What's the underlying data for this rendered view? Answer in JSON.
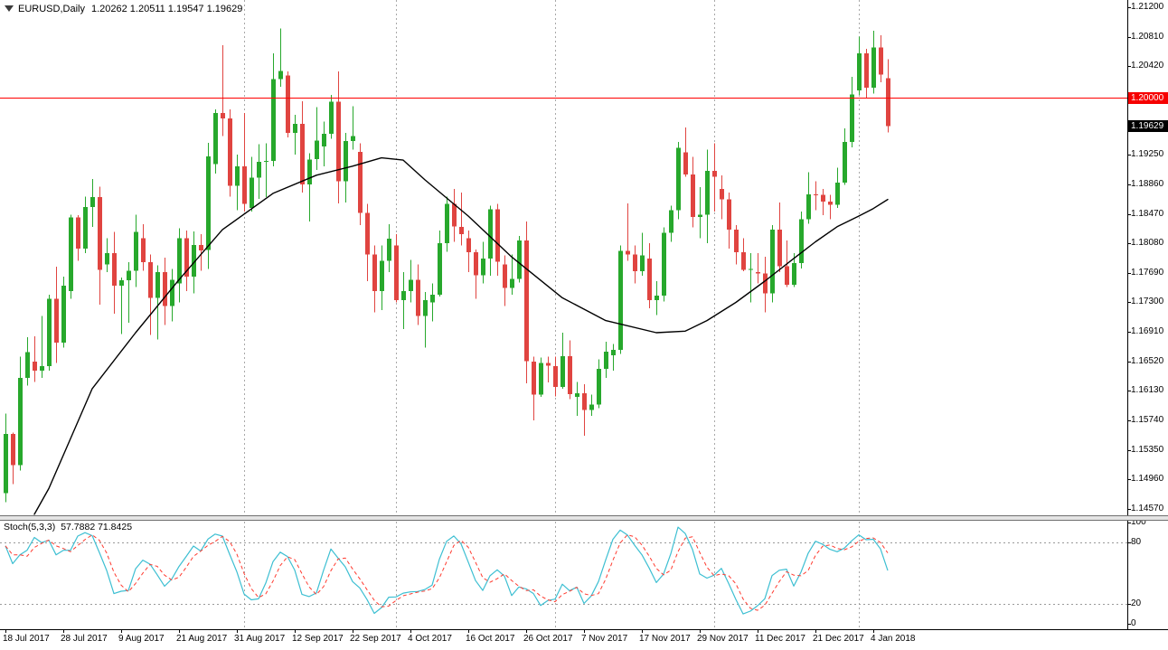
{
  "header": {
    "symbol": "EURUSD,Daily",
    "quote": "1.20262 1.20511 1.19547 1.19629"
  },
  "indicator": {
    "label": "Stoch(5,3,3)",
    "values": "57.7882 71.8425"
  },
  "price_axis": {
    "labels": [
      "1.21200",
      "1.20810",
      "1.20420",
      "1.19250",
      "1.18860",
      "1.18470",
      "1.18080",
      "1.17690",
      "1.17300",
      "1.16910",
      "1.16520",
      "1.16130",
      "1.15740",
      "1.15350",
      "1.14960",
      "1.14570"
    ],
    "red_badge": "1.20000",
    "price_badge": "1.19629"
  },
  "stoch_axis": {
    "labels": [
      "100",
      "80",
      "20",
      "0"
    ]
  },
  "time_axis": {
    "labels": [
      {
        "text": "18 Jul 2017",
        "bar": 0
      },
      {
        "text": "28 Jul 2017",
        "bar": 8
      },
      {
        "text": "9 Aug 2017",
        "bar": 16
      },
      {
        "text": "21 Aug 2017",
        "bar": 24
      },
      {
        "text": "31 Aug 2017",
        "bar": 32
      },
      {
        "text": "12 Sep 2017",
        "bar": 40
      },
      {
        "text": "22 Sep 2017",
        "bar": 48
      },
      {
        "text": "4 Oct 2017",
        "bar": 56
      },
      {
        "text": "16 Oct 2017",
        "bar": 64
      },
      {
        "text": "26 Oct 2017",
        "bar": 72
      },
      {
        "text": "7 Nov 2017",
        "bar": 80
      },
      {
        "text": "17 Nov 2017",
        "bar": 88
      },
      {
        "text": "29 Nov 2017",
        "bar": 96
      },
      {
        "text": "11 Dec 2017",
        "bar": 104
      },
      {
        "text": "21 Dec 2017",
        "bar": 112
      },
      {
        "text": "4 Jan 2018",
        "bar": 120
      }
    ]
  },
  "colors": {
    "bull": "#27a82c",
    "bear": "#e04440",
    "ma": "#000000",
    "stoch_k": "#3dbfd2",
    "stoch_d": "#ff3b30",
    "hline": "#ff0000",
    "grid": "#a8a8a8",
    "level": "#9a9a9a"
  },
  "chart_data": {
    "type": "candlestick",
    "title": "EURUSD,Daily",
    "price_range": {
      "top": 1.212,
      "bottom": 1.1457,
      "grid_step": 0.0039
    },
    "hline": {
      "price": 1.2,
      "label": "1.20000"
    },
    "current_price": 1.19629,
    "last_bar_ohlc": [
      1.20262,
      1.20511,
      1.19547,
      1.19629
    ],
    "grid_bars": [
      33,
      54,
      76,
      98,
      118
    ],
    "candles": [
      [
        1.1478,
        1.1583,
        1.1466,
        1.1556
      ],
      [
        1.1556,
        1.1558,
        1.149,
        1.1515
      ],
      [
        1.1515,
        1.1658,
        1.1508,
        1.163
      ],
      [
        1.163,
        1.1684,
        1.162,
        1.1664
      ],
      [
        1.1652,
        1.1685,
        1.1625,
        1.164
      ],
      [
        1.164,
        1.1712,
        1.163,
        1.1646
      ],
      [
        1.1646,
        1.174,
        1.164,
        1.1735
      ],
      [
        1.1735,
        1.1777,
        1.165,
        1.1677
      ],
      [
        1.1677,
        1.1764,
        1.167,
        1.1752
      ],
      [
        1.1745,
        1.1846,
        1.1735,
        1.1842
      ],
      [
        1.1842,
        1.1845,
        1.1785,
        1.1801
      ],
      [
        1.1801,
        1.187,
        1.1795,
        1.1856
      ],
      [
        1.1856,
        1.1893,
        1.183,
        1.1869
      ],
      [
        1.1869,
        1.1883,
        1.1727,
        1.1773
      ],
      [
        1.178,
        1.1815,
        1.177,
        1.1795
      ],
      [
        1.1795,
        1.1823,
        1.1715,
        1.1752
      ],
      [
        1.1752,
        1.1763,
        1.1688,
        1.1759
      ],
      [
        1.1759,
        1.1783,
        1.1703,
        1.1772
      ],
      [
        1.1772,
        1.1846,
        1.175,
        1.1823
      ],
      [
        1.1815,
        1.1833,
        1.1772,
        1.1783
      ],
      [
        1.1783,
        1.1793,
        1.1687,
        1.1736
      ],
      [
        1.1736,
        1.1779,
        1.1681,
        1.177
      ],
      [
        1.177,
        1.1789,
        1.17,
        1.1725
      ],
      [
        1.1725,
        1.1774,
        1.1705,
        1.176
      ],
      [
        1.1755,
        1.1828,
        1.173,
        1.1815
      ],
      [
        1.1815,
        1.1825,
        1.1745,
        1.1764
      ],
      [
        1.1764,
        1.1824,
        1.1742,
        1.1806
      ],
      [
        1.1806,
        1.182,
        1.1772,
        1.1799
      ],
      [
        1.1799,
        1.1941,
        1.1774,
        1.1923
      ],
      [
        1.1913,
        1.1985,
        1.19,
        1.198
      ],
      [
        1.198,
        1.207,
        1.195,
        1.1973
      ],
      [
        1.1973,
        1.1985,
        1.187,
        1.1884
      ],
      [
        1.1884,
        1.1925,
        1.1852,
        1.191
      ],
      [
        1.191,
        1.198,
        1.185,
        1.186
      ],
      [
        1.1855,
        1.1922,
        1.185,
        1.1895
      ],
      [
        1.1895,
        1.1939,
        1.1867,
        1.1916
      ],
      [
        1.1916,
        1.194,
        1.1869,
        1.1917
      ],
      [
        1.1917,
        1.2059,
        1.191,
        1.2025
      ],
      [
        1.2025,
        1.2092,
        1.2015,
        1.2036
      ],
      [
        1.203,
        1.2035,
        1.1948,
        1.1954
      ],
      [
        1.1954,
        1.1978,
        1.1925,
        1.1966
      ],
      [
        1.1966,
        1.1996,
        1.1875,
        1.1886
      ],
      [
        1.1886,
        1.1927,
        1.1837,
        1.1919
      ],
      [
        1.1919,
        1.1988,
        1.1905,
        1.1944
      ],
      [
        1.1936,
        1.1969,
        1.191,
        1.1953
      ],
      [
        1.1953,
        1.2004,
        1.1946,
        1.1995
      ],
      [
        1.1995,
        1.2035,
        1.1861,
        1.189
      ],
      [
        1.189,
        1.1954,
        1.1862,
        1.1943
      ],
      [
        1.1943,
        1.1989,
        1.1932,
        1.195
      ],
      [
        1.1929,
        1.194,
        1.1832,
        1.1848
      ],
      [
        1.1848,
        1.186,
        1.1758,
        1.1793
      ],
      [
        1.1793,
        1.1805,
        1.1717,
        1.1745
      ],
      [
        1.1745,
        1.1805,
        1.172,
        1.1785
      ],
      [
        1.1785,
        1.1833,
        1.177,
        1.1814
      ],
      [
        1.1805,
        1.182,
        1.173,
        1.1733
      ],
      [
        1.1733,
        1.177,
        1.1695,
        1.1745
      ],
      [
        1.1745,
        1.1786,
        1.173,
        1.176
      ],
      [
        1.176,
        1.178,
        1.17,
        1.1712
      ],
      [
        1.1712,
        1.1744,
        1.167,
        1.1733
      ],
      [
        1.173,
        1.1755,
        1.1705,
        1.174
      ],
      [
        1.174,
        1.1825,
        1.1738,
        1.1808
      ],
      [
        1.1808,
        1.187,
        1.1797,
        1.186
      ],
      [
        1.186,
        1.188,
        1.181,
        1.183
      ],
      [
        1.183,
        1.1875,
        1.1805,
        1.182
      ],
      [
        1.1815,
        1.1825,
        1.177,
        1.1796
      ],
      [
        1.1796,
        1.18,
        1.1735,
        1.1766
      ],
      [
        1.1766,
        1.181,
        1.1755,
        1.1788
      ],
      [
        1.1788,
        1.1858,
        1.1765,
        1.1853
      ],
      [
        1.1853,
        1.186,
        1.1765,
        1.1784
      ],
      [
        1.178,
        1.1792,
        1.1725,
        1.1749
      ],
      [
        1.1749,
        1.1793,
        1.174,
        1.1761
      ],
      [
        1.1761,
        1.1818,
        1.1756,
        1.1812
      ],
      [
        1.1812,
        1.1837,
        1.1623,
        1.1652
      ],
      [
        1.1652,
        1.1658,
        1.1574,
        1.1608
      ],
      [
        1.1608,
        1.1657,
        1.1605,
        1.165
      ],
      [
        1.165,
        1.1658,
        1.1624,
        1.1646
      ],
      [
        1.1646,
        1.1658,
        1.1606,
        1.1618
      ],
      [
        1.1618,
        1.169,
        1.1616,
        1.1659
      ],
      [
        1.1659,
        1.168,
        1.1602,
        1.1609
      ],
      [
        1.1605,
        1.1625,
        1.158,
        1.161
      ],
      [
        1.161,
        1.1622,
        1.1554,
        1.1588
      ],
      [
        1.1588,
        1.1608,
        1.158,
        1.1595
      ],
      [
        1.1595,
        1.1655,
        1.159,
        1.1642
      ],
      [
        1.1642,
        1.1678,
        1.163,
        1.1665
      ],
      [
        1.166,
        1.1675,
        1.164,
        1.1667
      ],
      [
        1.1667,
        1.1805,
        1.1662,
        1.1798
      ],
      [
        1.1798,
        1.1861,
        1.1785,
        1.1793
      ],
      [
        1.1793,
        1.1805,
        1.1755,
        1.1771
      ],
      [
        1.1771,
        1.1822,
        1.1765,
        1.1792
      ],
      [
        1.1788,
        1.1808,
        1.1722,
        1.1733
      ],
      [
        1.1733,
        1.1758,
        1.1713,
        1.1739
      ],
      [
        1.1739,
        1.1829,
        1.1731,
        1.1822
      ],
      [
        1.1822,
        1.1858,
        1.181,
        1.1852
      ],
      [
        1.1852,
        1.1942,
        1.184,
        1.1934
      ],
      [
        1.1928,
        1.1961,
        1.1896,
        1.1899
      ],
      [
        1.1899,
        1.1922,
        1.1829,
        1.1843
      ],
      [
        1.1843,
        1.1882,
        1.1815,
        1.1846
      ],
      [
        1.1846,
        1.1932,
        1.1808,
        1.1904
      ],
      [
        1.1904,
        1.194,
        1.185,
        1.1896
      ],
      [
        1.188,
        1.1898,
        1.184,
        1.1866
      ],
      [
        1.1866,
        1.1875,
        1.1801,
        1.1826
      ],
      [
        1.1826,
        1.1832,
        1.178,
        1.1796
      ],
      [
        1.1796,
        1.1815,
        1.1771,
        1.1773
      ],
      [
        1.1773,
        1.1795,
        1.173,
        1.1774
      ],
      [
        1.177,
        1.1795,
        1.1755,
        1.1768
      ],
      [
        1.1768,
        1.179,
        1.1717,
        1.1742
      ],
      [
        1.1742,
        1.1832,
        1.173,
        1.1826
      ],
      [
        1.1826,
        1.1862,
        1.177,
        1.1778
      ],
      [
        1.1778,
        1.1812,
        1.175,
        1.1753
      ],
      [
        1.1753,
        1.1795,
        1.175,
        1.1782
      ],
      [
        1.1782,
        1.185,
        1.1775,
        1.184
      ],
      [
        1.184,
        1.1902,
        1.1834,
        1.1873
      ],
      [
        1.1873,
        1.189,
        1.1852,
        1.1872
      ],
      [
        1.1872,
        1.188,
        1.1845,
        1.1863
      ],
      [
        1.1863,
        1.1872,
        1.184,
        1.1859
      ],
      [
        1.1859,
        1.1908,
        1.1855,
        1.1888
      ],
      [
        1.1888,
        1.196,
        1.1885,
        1.1942
      ],
      [
        1.1942,
        1.2028,
        1.1935,
        1.2005
      ],
      [
        1.201,
        1.2081,
        1.2004,
        1.2059
      ],
      [
        1.2059,
        1.2065,
        1.2,
        1.2014
      ],
      [
        1.2014,
        1.2089,
        1.2006,
        1.2067
      ],
      [
        1.2067,
        1.2083,
        1.2021,
        1.2031
      ],
      [
        1.20262,
        1.20511,
        1.19547,
        1.19629
      ]
    ],
    "ma_points": [
      [
        4,
        1.145
      ],
      [
        6,
        1.1484
      ],
      [
        8,
        1.1528
      ],
      [
        12,
        1.1616
      ],
      [
        18,
        1.169
      ],
      [
        24,
        1.176
      ],
      [
        30,
        1.1826
      ],
      [
        37,
        1.1874
      ],
      [
        43,
        1.1898
      ],
      [
        48,
        1.191
      ],
      [
        52,
        1.1921
      ],
      [
        55,
        1.1918
      ],
      [
        58,
        1.1892
      ],
      [
        64,
        1.1844
      ],
      [
        70,
        1.179
      ],
      [
        77,
        1.1736
      ],
      [
        83,
        1.1706
      ],
      [
        90,
        1.169
      ],
      [
        94,
        1.1692
      ],
      [
        97,
        1.1706
      ],
      [
        101,
        1.173
      ],
      [
        105,
        1.1758
      ],
      [
        109,
        1.1788
      ],
      [
        112,
        1.181
      ],
      [
        115,
        1.183
      ],
      [
        118,
        1.1844
      ],
      [
        120,
        1.1854
      ],
      [
        122,
        1.1866
      ]
    ],
    "stochastic": {
      "k_period": 5,
      "d_period": 3,
      "slowing": 3,
      "current_k": 57.7882,
      "current_d": 71.8425,
      "levels": [
        20,
        80
      ],
      "range": [
        0,
        100
      ]
    }
  }
}
